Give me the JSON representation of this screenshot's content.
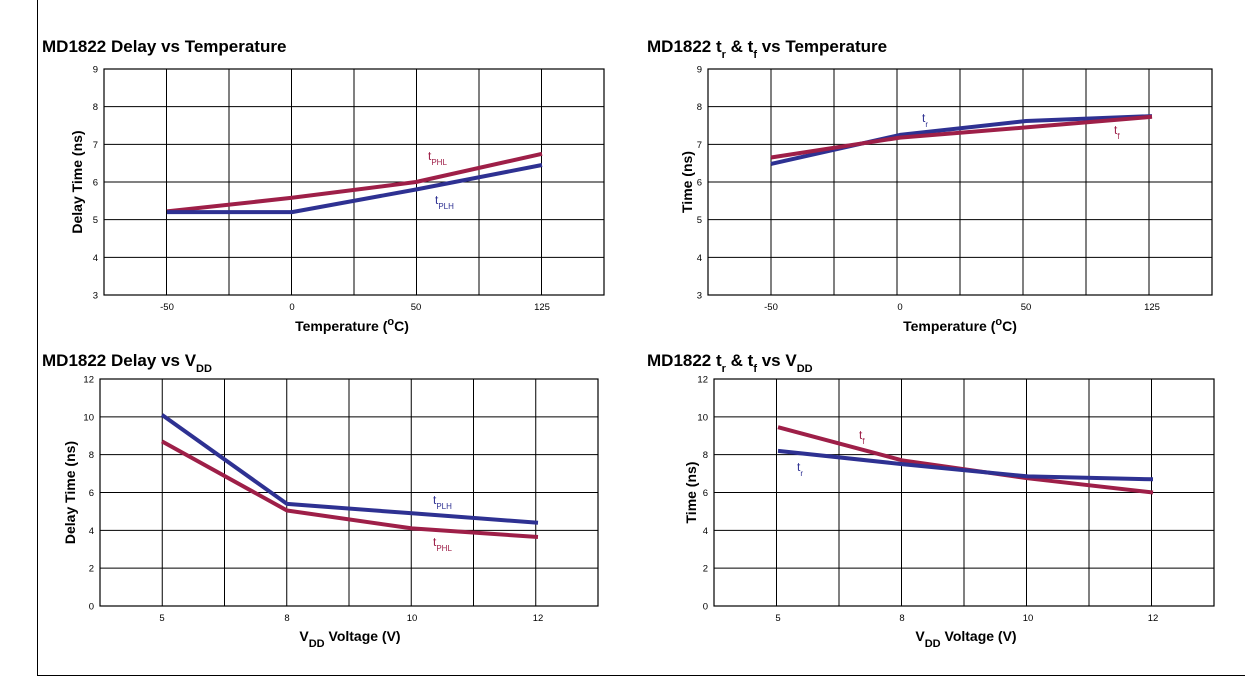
{
  "colors": {
    "series_blue": "#2e3192",
    "series_red": "#9e1f48",
    "grid": "#000000"
  },
  "chart_data": [
    {
      "type": "line",
      "title": {
        "main": "MD1822 Delay vs Temperature",
        "sub": ""
      },
      "xlabel": {
        "main": "Temperature (",
        "sup": "o",
        "tail": "C)"
      },
      "ylabel": "Delay Time  (ns)",
      "x_ticks": [
        -50,
        0,
        50,
        125
      ],
      "y_ticks": [
        3,
        4,
        5,
        6,
        7,
        8,
        9
      ],
      "ylim": [
        3,
        9
      ],
      "grid": true,
      "series": [
        {
          "name": "t",
          "name_sub": "PHL",
          "color": "#9e1f48",
          "x": [
            -50,
            0,
            50,
            125
          ],
          "y": [
            5.22,
            5.58,
            6.0,
            6.75
          ]
        },
        {
          "name": "t",
          "name_sub": "PLH",
          "color": "#2e3192",
          "x": [
            -50,
            0,
            50,
            125
          ],
          "y": [
            5.2,
            5.2,
            5.8,
            6.45
          ]
        }
      ]
    },
    {
      "type": "line",
      "title": {
        "main": "MD1822 t",
        "sub1": "r",
        "mid": " & t",
        "sub2": "f",
        "tail": " vs Temperature"
      },
      "xlabel": {
        "main": "Temperature (",
        "sup": "o",
        "tail": "C)"
      },
      "ylabel": "Time  (ns)",
      "x_ticks": [
        -50,
        0,
        50,
        125
      ],
      "y_ticks": [
        3,
        4,
        5,
        6,
        7,
        8,
        9
      ],
      "ylim": [
        3,
        9
      ],
      "grid": true,
      "series": [
        {
          "name": "t",
          "name_sub": "r",
          "color": "#2e3192",
          "x": [
            -50,
            0,
            50,
            125
          ],
          "y": [
            6.48,
            7.25,
            7.62,
            7.75
          ]
        },
        {
          "name": "t",
          "name_sub": "f",
          "color": "#9e1f48",
          "x": [
            -50,
            0,
            50,
            125
          ],
          "y": [
            6.65,
            7.18,
            7.45,
            7.73
          ]
        }
      ]
    },
    {
      "type": "line",
      "title": {
        "main": "MD1822 Delay vs V",
        "sub": "DD"
      },
      "xlabel": {
        "main": "V",
        "sub": "DD",
        "tail": " Voltage (V)"
      },
      "ylabel": "Delay Time  (ns)",
      "x_ticks": [
        5,
        8,
        10,
        12
      ],
      "y_ticks": [
        0,
        2,
        4,
        6,
        8,
        10,
        12
      ],
      "ylim": [
        0,
        12
      ],
      "grid": true,
      "series": [
        {
          "name": "t",
          "name_sub": "PLH",
          "color": "#2e3192",
          "x": [
            5,
            8,
            10,
            12
          ],
          "y": [
            10.1,
            5.4,
            4.9,
            4.4
          ]
        },
        {
          "name": "t",
          "name_sub": "PHL",
          "color": "#9e1f48",
          "x": [
            5,
            8,
            10,
            12
          ],
          "y": [
            8.7,
            5.05,
            4.1,
            3.65
          ]
        }
      ]
    },
    {
      "type": "line",
      "title": {
        "main": "MD1822 t",
        "sub1": "r",
        "mid": " & t",
        "sub2": "f",
        "tail": " vs V",
        "sub3": "DD"
      },
      "xlabel": {
        "main": "V",
        "sub": "DD",
        "tail": " Voltage (V)"
      },
      "ylabel": "Time  (ns)",
      "x_ticks": [
        5,
        8,
        10,
        12
      ],
      "y_ticks": [
        0,
        2,
        4,
        6,
        8,
        10,
        12
      ],
      "ylim": [
        0,
        12
      ],
      "grid": true,
      "series": [
        {
          "name": "t",
          "name_sub": "f",
          "color": "#9e1f48",
          "x": [
            5,
            8,
            10,
            12
          ],
          "y": [
            9.45,
            7.7,
            6.75,
            6.0
          ]
        },
        {
          "name": "t",
          "name_sub": "r",
          "color": "#2e3192",
          "x": [
            5,
            8,
            10,
            12
          ],
          "y": [
            8.2,
            7.5,
            6.85,
            6.7
          ]
        }
      ]
    }
  ]
}
